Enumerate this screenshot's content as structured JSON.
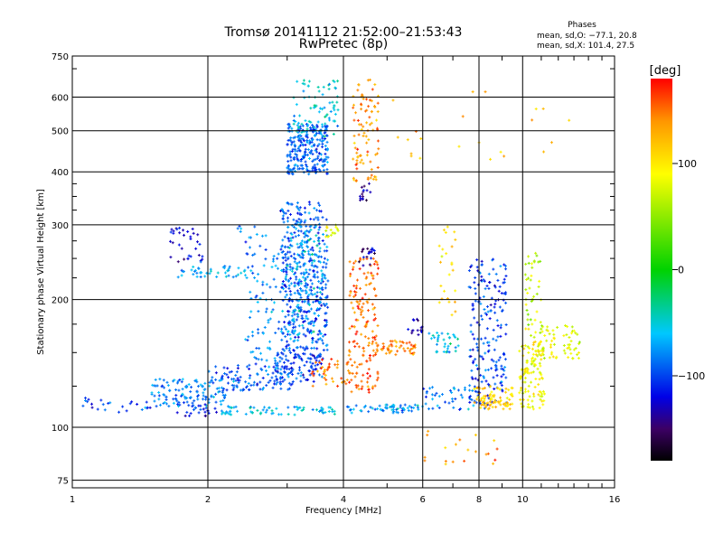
{
  "chart_data": {
    "type": "scatter",
    "title": "Tromsø 20141112 21:52:00–21:53:43",
    "subtitle": "RwPretec (8p)",
    "xlabel": "Frequency [MHz]",
    "ylabel": "Stationary phase Virtual Height [km]",
    "x_scale": "log",
    "y_scale": "log",
    "xlim": [
      1,
      16
    ],
    "ylim": [
      72,
      750
    ],
    "x_ticks": [
      1,
      2,
      4,
      6,
      8,
      10,
      16
    ],
    "x_tick_labels": [
      "1",
      "2",
      "4",
      "6",
      "8",
      "10",
      "16"
    ],
    "y_ticks": [
      75,
      100,
      200,
      300,
      400,
      500,
      600,
      750
    ],
    "y_tick_labels": [
      "75",
      "100",
      "200",
      "300",
      "400",
      "500",
      "600",
      "750"
    ],
    "grid": true,
    "phases_legend": {
      "title": "Phases",
      "line_o": "mean, sd,O: −77.1, 20.8",
      "line_x": "mean, sd,X: 101.4, 27.5"
    },
    "colorbar": {
      "label": "[deg]",
      "range": [
        -180,
        180
      ],
      "ticks": [
        100,
        0,
        -100
      ],
      "tick_labels": [
        "100",
        "0",
        "−100"
      ],
      "stops": [
        {
          "v": -180,
          "color": "#000000"
        },
        {
          "v": -150,
          "color": "#3c0064"
        },
        {
          "v": -120,
          "color": "#0000e6"
        },
        {
          "v": -60,
          "color": "#00c8ff"
        },
        {
          "v": 0,
          "color": "#00d200"
        },
        {
          "v": 90,
          "color": "#ffff00"
        },
        {
          "v": 140,
          "color": "#ff9600"
        },
        {
          "v": 180,
          "color": "#ff0000"
        }
      ]
    },
    "clusters": [
      {
        "f": [
          1.05,
          1.5
        ],
        "h": [
          108,
          118
        ],
        "phase": -100,
        "n": 25
      },
      {
        "f": [
          1.5,
          2.2
        ],
        "h": [
          112,
          130
        ],
        "phase": -80,
        "n": 120
      },
      {
        "f": [
          2.0,
          3.1
        ],
        "h": [
          122,
          140
        ],
        "phase": -95,
        "n": 110
      },
      {
        "f": [
          2.8,
          3.6
        ],
        "h": [
          128,
          150
        ],
        "phase": -100,
        "n": 80
      },
      {
        "f": [
          3.4,
          4.1
        ],
        "h": [
          125,
          145
        ],
        "phase": 145,
        "n": 40
      },
      {
        "f": [
          1.7,
          2.1
        ],
        "h": [
          106,
          116
        ],
        "phase": -110,
        "n": 30
      },
      {
        "f": [
          2.1,
          3.9
        ],
        "h": [
          107,
          112
        ],
        "phase": -60,
        "n": 70
      },
      {
        "f": [
          1.7,
          2.5
        ],
        "h": [
          225,
          240
        ],
        "phase": -70,
        "n": 45
      },
      {
        "f": [
          1.65,
          1.95
        ],
        "h": [
          245,
          300
        ],
        "phase": -125,
        "n": 35
      },
      {
        "f": [
          2.3,
          2.7
        ],
        "h": [
          250,
          300
        ],
        "phase": -90,
        "n": 15
      },
      {
        "f": [
          2.4,
          3.0
        ],
        "h": [
          140,
          260
        ],
        "phase": -80,
        "n": 90
      },
      {
        "f": [
          2.9,
          3.7
        ],
        "h": [
          145,
          340
        ],
        "phase": -95,
        "n": 450
      },
      {
        "f": [
          3.0,
          3.6
        ],
        "h": [
          160,
          300
        ],
        "phase": -60,
        "n": 120
      },
      {
        "f": [
          3.65,
          3.9
        ],
        "h": [
          280,
          300
        ],
        "phase": 80,
        "n": 15
      },
      {
        "f": [
          3.0,
          3.7
        ],
        "h": [
          395,
          520
        ],
        "phase": -90,
        "n": 260
      },
      {
        "f": [
          3.1,
          3.9
        ],
        "h": [
          480,
          660
        ],
        "phase": -55,
        "n": 80
      },
      {
        "f": [
          4.2,
          4.8
        ],
        "h": [
          380,
          660
        ],
        "phase": 140,
        "n": 90
      },
      {
        "f": [
          4.1,
          4.8
        ],
        "h": [
          120,
          250
        ],
        "phase": 150,
        "n": 170
      },
      {
        "f": [
          4.3,
          4.7
        ],
        "h": [
          240,
          265
        ],
        "phase": -140,
        "n": 20
      },
      {
        "f": [
          4.35,
          4.6
        ],
        "h": [
          340,
          380
        ],
        "phase": -140,
        "n": 15
      },
      {
        "f": [
          4.8,
          5.8
        ],
        "h": [
          148,
          160
        ],
        "phase": 145,
        "n": 45
      },
      {
        "f": [
          4.0,
          6.0
        ],
        "h": [
          108,
          113
        ],
        "phase": -70,
        "n": 60
      },
      {
        "f": [
          5.5,
          6.0
        ],
        "h": [
          165,
          180
        ],
        "phase": -130,
        "n": 15
      },
      {
        "f": [
          6.2,
          7.2
        ],
        "h": [
          150,
          170
        ],
        "phase": -60,
        "n": 35
      },
      {
        "f": [
          6.0,
          7.8
        ],
        "h": [
          110,
          125
        ],
        "phase": -80,
        "n": 40
      },
      {
        "f": [
          6.5,
          7.2
        ],
        "h": [
          180,
          300
        ],
        "phase": 110,
        "n": 25
      },
      {
        "f": [
          7.6,
          9.2
        ],
        "h": [
          110,
          250
        ],
        "phase": -100,
        "n": 200
      },
      {
        "f": [
          7.8,
          9.5
        ],
        "h": [
          110,
          125
        ],
        "phase": 110,
        "n": 80
      },
      {
        "f": [
          9.8,
          11.2
        ],
        "h": [
          110,
          160
        ],
        "phase": 90,
        "n": 120
      },
      {
        "f": [
          10.0,
          11.0
        ],
        "h": [
          160,
          260
        ],
        "phase": 70,
        "n": 45
      },
      {
        "f": [
          11.0,
          13.5
        ],
        "h": [
          145,
          175
        ],
        "phase": 80,
        "n": 60
      },
      {
        "f": [
          6.0,
          9.0
        ],
        "h": [
          80,
          100
        ],
        "phase": 140,
        "n": 20
      },
      {
        "f": [
          4.8,
          13.5
        ],
        "h": [
          420,
          620
        ],
        "phase": 120,
        "n": 22
      }
    ]
  }
}
